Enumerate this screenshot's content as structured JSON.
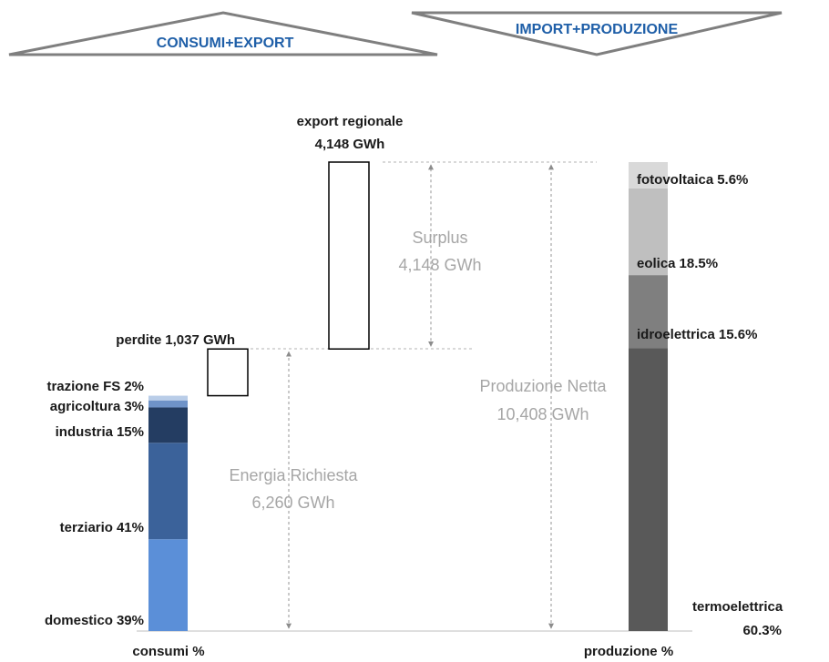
{
  "chart_data": {
    "type": "energy-balance",
    "headers": [
      "CONSUMI+EXPORT",
      "IMPORT+PRODUZIONE"
    ],
    "consumption": {
      "label": "consumi %",
      "categories": [
        "domestico",
        "terziario",
        "industria",
        "agricoltura",
        "trazione FS"
      ],
      "values": [
        39,
        41,
        15,
        3,
        2
      ],
      "value_labels": [
        "39%",
        "41%",
        "15%",
        "3%",
        "2%"
      ],
      "colors": [
        "#5b8fd8",
        "#3b629a",
        "#243d62",
        "#6f93c8",
        "#b9cde8"
      ]
    },
    "production": {
      "label": "produzione %",
      "categories": [
        "termoelettrica",
        "idroelettrica",
        "eolica",
        "fotovoltaica"
      ],
      "values": [
        60.3,
        15.6,
        18.5,
        5.6
      ],
      "value_labels": [
        "60.3%",
        "15.6%",
        "18.5%",
        "5.6%"
      ],
      "colors": [
        "#595959",
        "#7f7f7f",
        "#bfbfbf",
        "#d9d9d9"
      ]
    },
    "export": {
      "name": "export regionale",
      "value": 4148,
      "value_label": "4,148 GWh"
    },
    "losses": {
      "name": "perdite",
      "value": 1037,
      "value_label": "1,037 GWh"
    },
    "surplus": {
      "name": "Surplus",
      "value": 4148,
      "value_label": "4,148 GWh"
    },
    "demand": {
      "name": "Energia Richiesta",
      "value": 6260,
      "value_label": "6,260 GWh"
    },
    "net_production": {
      "name": "Produzione Netta",
      "value": 10408,
      "value_label": "10,408 GWh"
    }
  }
}
